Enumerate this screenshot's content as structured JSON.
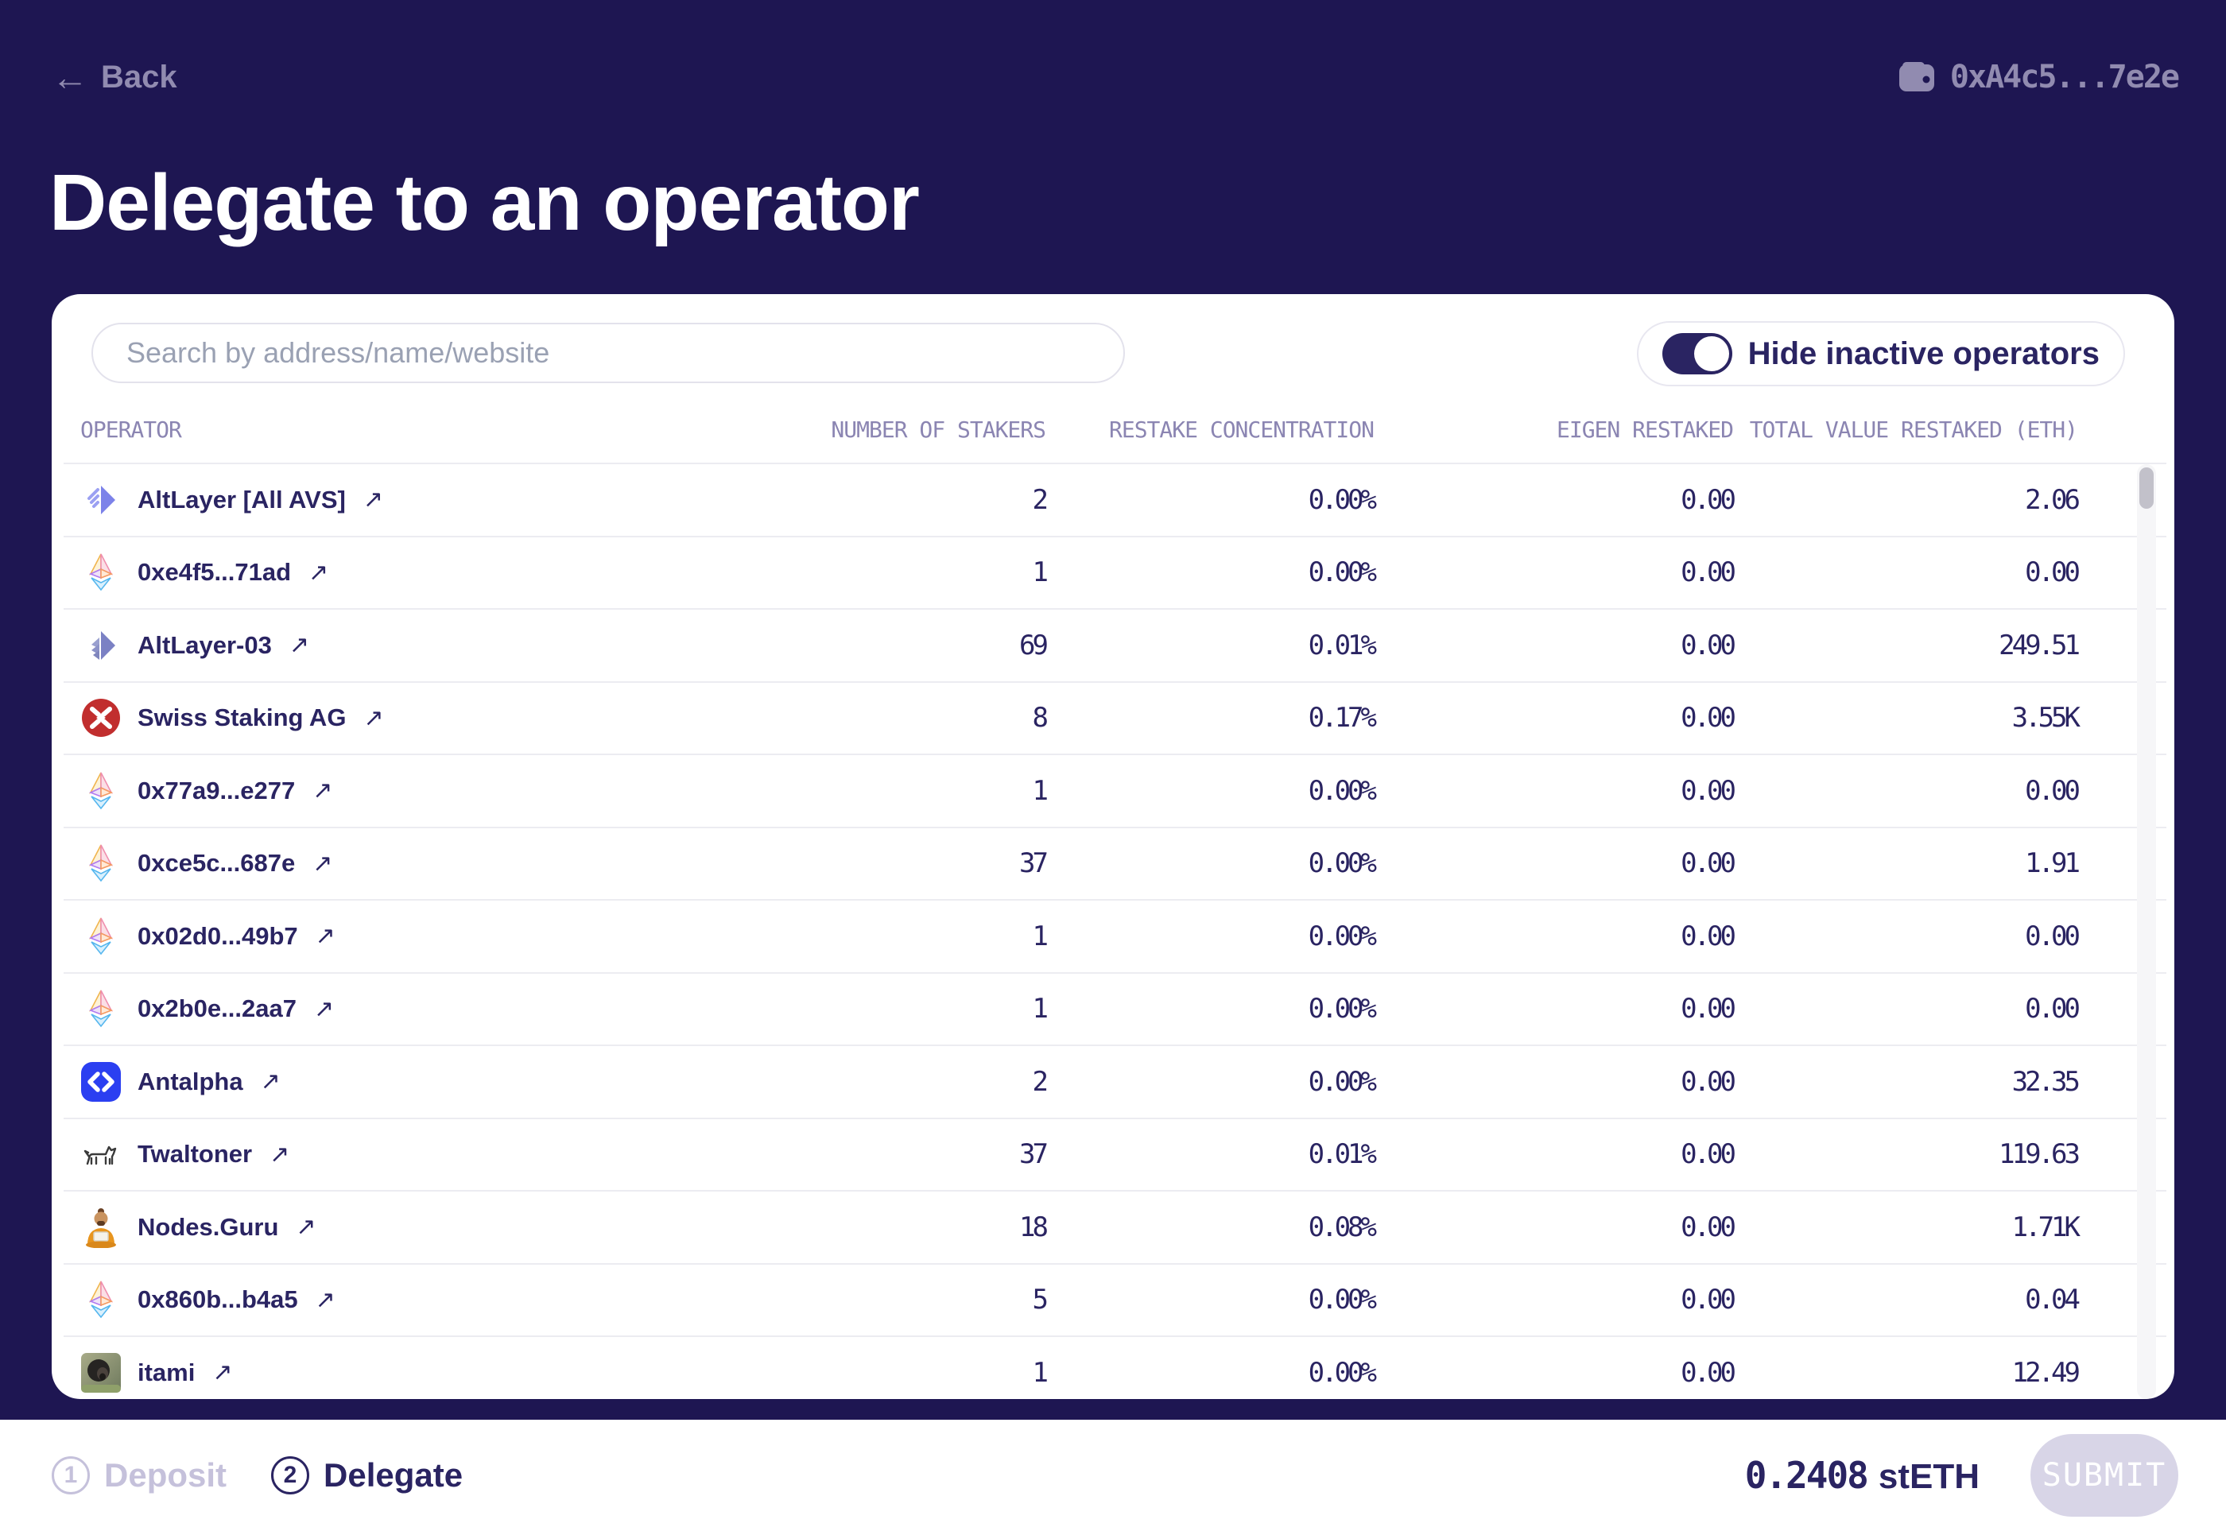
{
  "topbar": {
    "back_arrow": "←",
    "back_label": "Back",
    "wallet_address": "0xA4c5...7e2e"
  },
  "page": {
    "title": "Delegate to an operator"
  },
  "panel": {
    "search_placeholder": "Search by address/name/website",
    "toggle_label": "Hide inactive operators",
    "toggle_on": true,
    "table": {
      "link_arrow": "↗",
      "columns": [
        "OPERATOR",
        "NUMBER OF STAKERS",
        "RESTAKE CONCENTRATION",
        "EIGEN RESTAKED",
        "TOTAL VALUE RESTAKED (ETH)"
      ],
      "rows": [
        {
          "name": "AltLayer [All AVS]",
          "icon": "altlayer-logo",
          "stakers": "2",
          "concentration": "0.00%",
          "eigen": "0.00",
          "total": "2.06"
        },
        {
          "name": "0xe4f5...71ad",
          "icon": "eth-diamond",
          "stakers": "1",
          "concentration": "0.00%",
          "eigen": "0.00",
          "total": "0.00"
        },
        {
          "name": "AltLayer-03",
          "icon": "altlayer-muted-logo",
          "stakers": "69",
          "concentration": "0.01%",
          "eigen": "0.00",
          "total": "249.51"
        },
        {
          "name": "Swiss Staking AG",
          "icon": "swiss-staking-logo",
          "stakers": "8",
          "concentration": "0.17%",
          "eigen": "0.00",
          "total": "3.55K"
        },
        {
          "name": "0x77a9...e277",
          "icon": "eth-diamond",
          "stakers": "1",
          "concentration": "0.00%",
          "eigen": "0.00",
          "total": "0.00"
        },
        {
          "name": "0xce5c...687e",
          "icon": "eth-diamond",
          "stakers": "37",
          "concentration": "0.00%",
          "eigen": "0.00",
          "total": "1.91"
        },
        {
          "name": "0x02d0...49b7",
          "icon": "eth-diamond",
          "stakers": "1",
          "concentration": "0.00%",
          "eigen": "0.00",
          "total": "0.00"
        },
        {
          "name": "0x2b0e...2aa7",
          "icon": "eth-diamond",
          "stakers": "1",
          "concentration": "0.00%",
          "eigen": "0.00",
          "total": "0.00"
        },
        {
          "name": "Antalpha",
          "icon": "antalpha-logo",
          "stakers": "2",
          "concentration": "0.00%",
          "eigen": "0.00",
          "total": "32.35"
        },
        {
          "name": "Twaltoner",
          "icon": "dog-drawing",
          "stakers": "37",
          "concentration": "0.01%",
          "eigen": "0.00",
          "total": "119.63"
        },
        {
          "name": "Nodes.Guru",
          "icon": "guru-avatar",
          "stakers": "18",
          "concentration": "0.08%",
          "eigen": "0.00",
          "total": "1.71K"
        },
        {
          "name": "0x860b...b4a5",
          "icon": "eth-diamond",
          "stakers": "5",
          "concentration": "0.00%",
          "eigen": "0.00",
          "total": "0.04"
        },
        {
          "name": "itami",
          "icon": "monkey-photo",
          "stakers": "1",
          "concentration": "0.00%",
          "eigen": "0.00",
          "total": "12.49"
        }
      ]
    }
  },
  "footer": {
    "steps": [
      {
        "number": "1",
        "label": "Deposit",
        "active": false
      },
      {
        "number": "2",
        "label": "Delegate",
        "active": true
      }
    ],
    "balance_amount": "0.2408",
    "balance_unit": "stETH",
    "submit_label": "SUBMIT"
  },
  "colors": {
    "background": "#1e1652",
    "card": "#ffffff",
    "text_navy": "#2a2462",
    "muted_purple": "#918bb0",
    "header_text": "#8b85b2",
    "row_border": "#ececf1",
    "inactive_step": "#c5c1db",
    "submit_disabled_bg": "#d8d5e7",
    "antalpha_blue": "#2b3ff1",
    "swiss_red": "#c12e2e"
  }
}
